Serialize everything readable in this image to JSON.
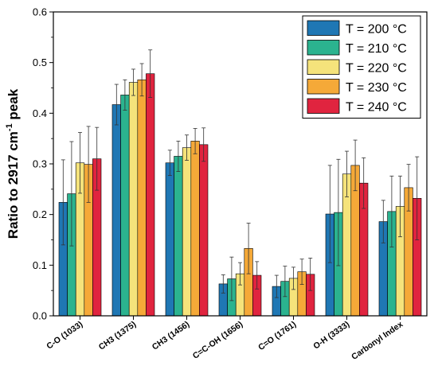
{
  "chart_data": {
    "type": "bar",
    "ylabel": {
      "main": "Ratio to 2917 cm",
      "sup": "-1",
      "tail": " peak"
    },
    "xlabel": "",
    "ylim": [
      0,
      0.6
    ],
    "yticks": [
      0.0,
      0.1,
      0.2,
      0.3,
      0.4,
      0.5,
      0.6
    ],
    "ytick_labels": [
      "0.0",
      "0.1",
      "0.2",
      "0.3",
      "0.4",
      "0.5",
      "0.6"
    ],
    "categories": [
      "C-O (1033)",
      "CH3 (1375)",
      "CH3 (1456)",
      "C=C-OH (1656)",
      "C=O (1761)",
      "O-H (3333)",
      "Carbonyl Index"
    ],
    "legend_position": "top-right",
    "grid": false,
    "series": [
      {
        "name": "T = 200 °C",
        "color": "#1F77B4",
        "values": [
          0.224,
          0.417,
          0.302,
          0.063,
          0.058,
          0.201,
          0.186
        ],
        "errors": [
          0.084,
          0.04,
          0.025,
          0.018,
          0.022,
          0.096,
          0.042
        ]
      },
      {
        "name": "T = 210 °C",
        "color": "#2BB38F",
        "values": [
          0.241,
          0.436,
          0.315,
          0.073,
          0.068,
          0.204,
          0.206
        ],
        "errors": [
          0.103,
          0.03,
          0.03,
          0.043,
          0.03,
          0.105,
          0.07
        ]
      },
      {
        "name": "T = 220 °C",
        "color": "#F5E37B",
        "values": [
          0.302,
          0.461,
          0.332,
          0.083,
          0.074,
          0.28,
          0.216
        ],
        "errors": [
          0.06,
          0.026,
          0.025,
          0.022,
          0.022,
          0.045,
          0.06
        ]
      },
      {
        "name": "T = 230 °C",
        "color": "#F5A938",
        "values": [
          0.299,
          0.466,
          0.345,
          0.133,
          0.087,
          0.297,
          0.253
        ],
        "errors": [
          0.075,
          0.032,
          0.025,
          0.05,
          0.025,
          0.05,
          0.046
        ]
      },
      {
        "name": "T = 240 °C",
        "color": "#E0243F",
        "values": [
          0.31,
          0.478,
          0.338,
          0.08,
          0.082,
          0.262,
          0.232
        ],
        "errors": [
          0.062,
          0.047,
          0.033,
          0.027,
          0.032,
          0.05,
          0.082
        ]
      }
    ]
  }
}
